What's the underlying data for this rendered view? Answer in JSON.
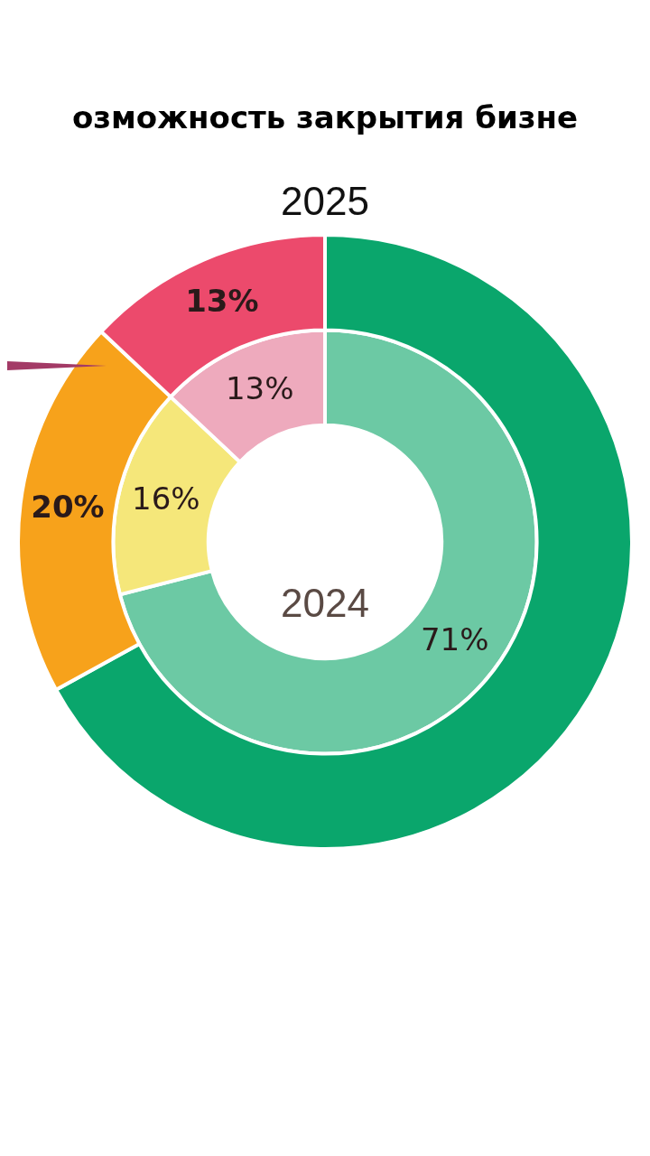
{
  "chart_data": {
    "type": "donut",
    "title": "озможность закрытия бизне",
    "categories": [
      null,
      null,
      null
    ],
    "series": [
      {
        "name": "2024",
        "colors": [
          "#6cc9a4",
          "#f5e77a",
          "#eeaabd"
        ],
        "values": [
          71,
          16,
          13
        ],
        "value_labels": [
          "71%",
          "16%",
          "13%"
        ]
      },
      {
        "name": "2025",
        "colors": [
          "#0aa66c",
          "#f7a21b",
          "#ec4a6c"
        ],
        "values": [
          67,
          20,
          13
        ],
        "value_labels": [
          null,
          "20%",
          "13%"
        ]
      }
    ]
  }
}
